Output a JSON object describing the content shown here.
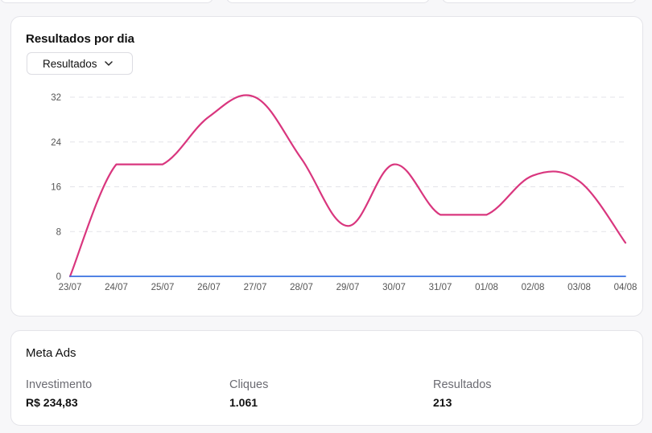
{
  "chart_card": {
    "title": "Resultados por dia",
    "dropdown_label": "Resultados"
  },
  "chart_data": {
    "type": "line",
    "title": "Resultados por dia",
    "categories": [
      "23/07",
      "24/07",
      "25/07",
      "26/07",
      "27/07",
      "28/07",
      "29/07",
      "30/07",
      "31/07",
      "01/08",
      "02/08",
      "03/08",
      "04/08"
    ],
    "yticks": [
      0,
      8,
      16,
      24,
      32
    ],
    "ylim": [
      0,
      32
    ],
    "grid": true,
    "series": [
      {
        "values": [
          0,
          20,
          20,
          28.5,
          32,
          21,
          9,
          20,
          11,
          11,
          18,
          17,
          6
        ],
        "color": "#d9367e"
      },
      {
        "values": [
          0,
          0,
          0,
          0,
          0,
          0,
          0,
          0,
          0,
          0,
          0,
          0,
          0
        ],
        "color": "#3a72e0"
      }
    ]
  },
  "meta_card": {
    "title": "Meta Ads",
    "stats": [
      {
        "label": "Investimento",
        "value": "R$ 234,83"
      },
      {
        "label": "Cliques",
        "value": "1.061"
      },
      {
        "label": "Resultados",
        "value": "213"
      }
    ]
  }
}
